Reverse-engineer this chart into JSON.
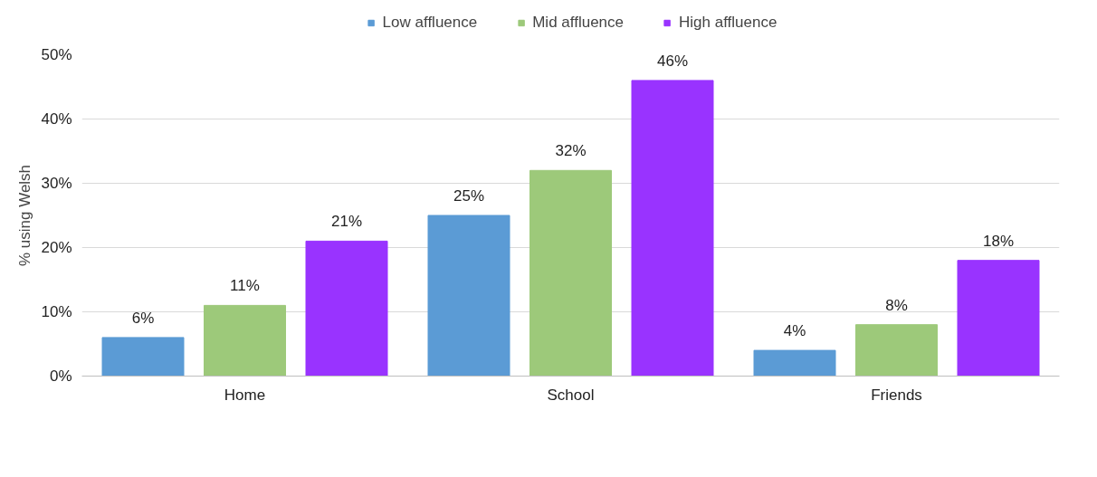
{
  "chart_data": {
    "type": "bar",
    "ylabel": "% using Welsh",
    "categories": [
      "Home",
      "School",
      "Friends"
    ],
    "series": [
      {
        "name": "Low affluence",
        "color": "#5b9bd5",
        "values": [
          6,
          25,
          4
        ],
        "value_labels": [
          "6%",
          "25%",
          "4%"
        ]
      },
      {
        "name": "Mid affluence",
        "color": "#9dc97a",
        "values": [
          11,
          32,
          8
        ],
        "value_labels": [
          "11%",
          "32%",
          "8%"
        ]
      },
      {
        "name": "High affluence",
        "color": "#9933ff",
        "values": [
          21,
          46,
          18
        ],
        "value_labels": [
          "21%",
          "46%",
          "18%"
        ]
      }
    ],
    "ylim": [
      0,
      50
    ],
    "yticks": [
      {
        "value": 0,
        "label": "0%"
      },
      {
        "value": 10,
        "label": "10%"
      },
      {
        "value": 20,
        "label": "20%"
      },
      {
        "value": 30,
        "label": "30%"
      },
      {
        "value": 40,
        "label": "40%"
      },
      {
        "value": 50,
        "label": "50%"
      }
    ],
    "grid": "y",
    "legend": "top"
  }
}
